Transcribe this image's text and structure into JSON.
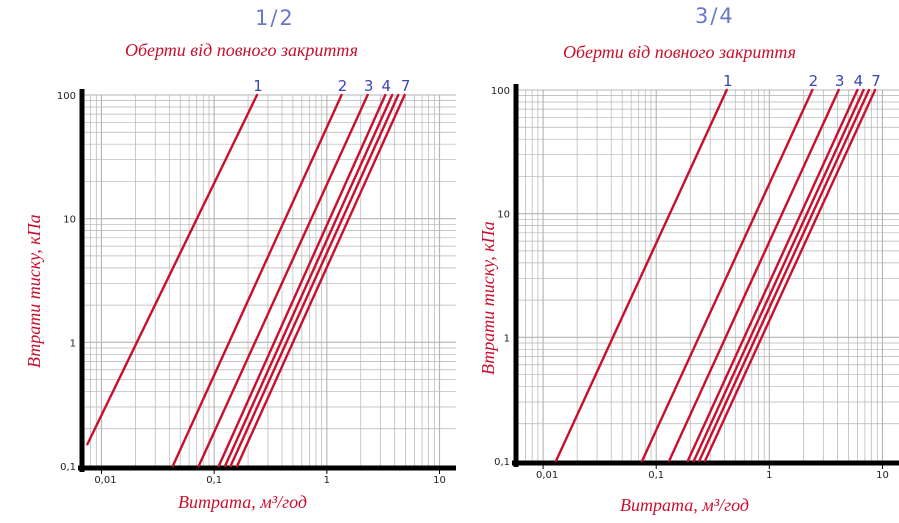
{
  "colors": {
    "curve": "#c8102e",
    "grid": "#b4b4b4",
    "axis": "#000000",
    "curve_label": "#3b44b8",
    "size_label": "#6b78c8"
  },
  "chart_data": [
    {
      "type": "line",
      "size_label": "1/2",
      "title": "Оберти від повного закриття",
      "xlabel": "Витрата, м³/год",
      "ylabel": "Втрати тиску, кПа",
      "x_scale": "log",
      "y_scale": "log",
      "xlim": [
        0.007,
        14
      ],
      "ylim": [
        0.1,
        100
      ],
      "grid": true,
      "x_ticks": [
        "0,01",
        "0,1",
        "1",
        "10"
      ],
      "y_ticks": [
        "0,1",
        "1",
        "10",
        "100"
      ],
      "curve_labels": [
        "1",
        "2",
        "3",
        "4",
        "7"
      ],
      "series": [
        {
          "name": "1",
          "points": [
            [
              0.0075,
              0.15
            ],
            [
              0.24,
              100
            ]
          ]
        },
        {
          "name": "2",
          "points": [
            [
              0.043,
              0.1
            ],
            [
              1.35,
              100
            ]
          ]
        },
        {
          "name": "3",
          "points": [
            [
              0.073,
              0.1
            ],
            [
              2.3,
              100
            ]
          ]
        },
        {
          "name": "4",
          "points": [
            [
              0.11,
              0.1
            ],
            [
              3.3,
              100
            ]
          ]
        },
        {
          "name": "",
          "points": [
            [
              0.125,
              0.1
            ],
            [
              3.8,
              100
            ]
          ]
        },
        {
          "name": "",
          "points": [
            [
              0.14,
              0.1
            ],
            [
              4.3,
              100
            ]
          ]
        },
        {
          "name": "7",
          "points": [
            [
              0.16,
              0.1
            ],
            [
              4.9,
              100
            ]
          ]
        }
      ]
    },
    {
      "type": "line",
      "size_label": "3/4",
      "title": "Оберти від повного закриття",
      "xlabel": "Витрата, м³/год",
      "ylabel": "Втрати тиску, кПа",
      "x_scale": "log",
      "y_scale": "log",
      "xlim": [
        0.006,
        14
      ],
      "ylim": [
        0.1,
        100
      ],
      "grid": true,
      "x_ticks": [
        "0,01",
        "0,1",
        "1",
        "10"
      ],
      "y_ticks": [
        "0,1",
        "1",
        "10",
        "100"
      ],
      "curve_labels": [
        "1",
        "2",
        "3",
        "4",
        "7"
      ],
      "series": [
        {
          "name": "1",
          "points": [
            [
              0.013,
              0.1
            ],
            [
              0.42,
              100
            ]
          ]
        },
        {
          "name": "2",
          "points": [
            [
              0.075,
              0.1
            ],
            [
              2.4,
              100
            ]
          ]
        },
        {
          "name": "3",
          "points": [
            [
              0.13,
              0.1
            ],
            [
              4.1,
              100
            ]
          ]
        },
        {
          "name": "4",
          "points": [
            [
              0.19,
              0.1
            ],
            [
              6.0,
              100
            ]
          ]
        },
        {
          "name": "",
          "points": [
            [
              0.215,
              0.1
            ],
            [
              6.8,
              100
            ]
          ]
        },
        {
          "name": "",
          "points": [
            [
              0.24,
              0.1
            ],
            [
              7.6,
              100
            ]
          ]
        },
        {
          "name": "7",
          "points": [
            [
              0.27,
              0.1
            ],
            [
              8.6,
              100
            ]
          ]
        }
      ]
    }
  ]
}
